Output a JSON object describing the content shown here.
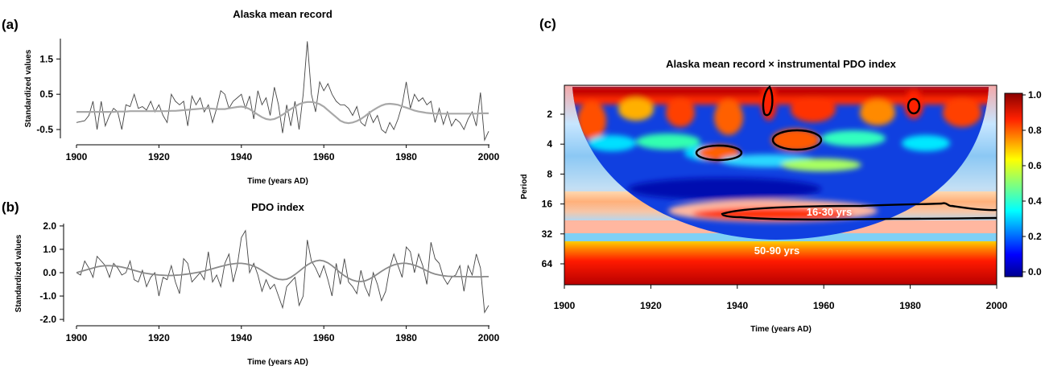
{
  "chart_data": [
    {
      "type": "line",
      "panel_label": "(a)",
      "title": "Alaska mean record",
      "xlabel": "Time  (years AD)",
      "ylabel": "Standardized values",
      "xlim": [
        1900,
        2000
      ],
      "ylim": [
        -0.75,
        2.1
      ],
      "x_ticks": [
        1900,
        1920,
        1940,
        1960,
        1980,
        2000
      ],
      "y_ticks": [
        -0.5,
        0.5,
        1.5
      ],
      "y_tick_labels": [
        "-0.5",
        "0.5",
        "1.5"
      ],
      "x": [
        1900,
        1902,
        1903,
        1904,
        1905,
        1906,
        1907,
        1908,
        1909,
        1910,
        1911,
        1912,
        1913,
        1914,
        1915,
        1916,
        1917,
        1918,
        1919,
        1920,
        1921,
        1922,
        1923,
        1924,
        1925,
        1926,
        1927,
        1928,
        1929,
        1930,
        1931,
        1932,
        1933,
        1934,
        1935,
        1936,
        1937,
        1938,
        1939,
        1940,
        1941,
        1942,
        1943,
        1944,
        1945,
        1946,
        1947,
        1948,
        1949,
        1950,
        1951,
        1952,
        1953,
        1954,
        1955,
        1956,
        1957,
        1958,
        1959,
        1960,
        1961,
        1962,
        1963,
        1964,
        1965,
        1966,
        1967,
        1968,
        1969,
        1970,
        1971,
        1972,
        1973,
        1974,
        1975,
        1976,
        1977,
        1978,
        1979,
        1980,
        1981,
        1982,
        1983,
        1984,
        1985,
        1986,
        1987,
        1988,
        1989,
        1990,
        1991,
        1992,
        1993,
        1994,
        1995,
        1996,
        1997,
        1998,
        1999,
        2000
      ],
      "series": [
        {
          "values": [
            -0.3,
            -0.25,
            -0.1,
            0.3,
            -0.5,
            0.3,
            -0.4,
            -0.1,
            0.1,
            0.0,
            -0.5,
            0.2,
            0.15,
            0.5,
            0.1,
            0.15,
            0.05,
            0.3,
            0.0,
            0.2,
            -0.1,
            -0.3,
            0.5,
            0.3,
            0.2,
            0.3,
            -0.4,
            0.45,
            0.2,
            0.4,
            0.0,
            0.2,
            -0.3,
            0.1,
            0.6,
            0.5,
            0.1,
            0.3,
            0.4,
            0.5,
            0.1,
            0.45,
            -0.2,
            0.6,
            0.2,
            0.4,
            -0.1,
            0.7,
            0.2,
            -0.6,
            0.2,
            -0.4,
            0.3,
            -0.5,
            0.5,
            2.0,
            0.5,
            0.0,
            0.85,
            0.6,
            0.8,
            0.5,
            0.3,
            0.2,
            0.2,
            0.1,
            -0.1,
            0.15,
            -0.3,
            -0.4,
            0.0,
            -0.3,
            -0.1,
            -0.5,
            -0.6,
            -0.3,
            -0.5,
            -0.2,
            0.2,
            0.85,
            0.1,
            0.5,
            0.3,
            0.4,
            0.2,
            0.3,
            -0.3,
            0.1,
            -0.35,
            0.0,
            -0.4,
            -0.2,
            -0.3,
            -0.5,
            -0.2,
            0.0,
            -0.4,
            0.55,
            -0.8,
            -0.55
          ]
        },
        {
          "values": [
            0.0,
            0.0,
            0.0,
            0.0,
            0.0,
            0.0,
            0.0,
            0.0,
            0.0,
            0.01,
            0.01,
            0.01,
            0.02,
            0.02,
            0.02,
            0.02,
            0.02,
            0.02,
            0.02,
            0.02,
            0.02,
            0.02,
            0.03,
            0.03,
            0.04,
            0.05,
            0.06,
            0.07,
            0.08,
            0.09,
            0.1,
            0.1,
            0.09,
            0.08,
            0.08,
            0.08,
            0.1,
            0.12,
            0.14,
            0.15,
            0.13,
            0.08,
            0.0,
            -0.08,
            -0.15,
            -0.2,
            -0.22,
            -0.2,
            -0.15,
            -0.08,
            0.0,
            0.08,
            0.15,
            0.22,
            0.26,
            0.28,
            0.28,
            0.26,
            0.22,
            0.15,
            0.05,
            -0.05,
            -0.15,
            -0.25,
            -0.3,
            -0.32,
            -0.3,
            -0.26,
            -0.2,
            -0.12,
            -0.03,
            0.05,
            0.12,
            0.18,
            0.22,
            0.23,
            0.22,
            0.2,
            0.16,
            0.12,
            0.08,
            0.04,
            0.01,
            -0.01,
            -0.03,
            -0.04,
            -0.05,
            -0.05,
            -0.05,
            -0.05,
            -0.05,
            -0.05,
            -0.05,
            -0.05,
            -0.05,
            -0.05,
            -0.05,
            -0.04,
            -0.04,
            -0.04
          ]
        }
      ]
    },
    {
      "type": "line",
      "panel_label": "(b)",
      "title": "PDO index",
      "xlabel": "Time  (years AD)",
      "ylabel": "Standardized values",
      "xlim": [
        1900,
        2000
      ],
      "ylim": [
        -2.1,
        2.1
      ],
      "x_ticks": [
        1900,
        1920,
        1940,
        1960,
        1980,
        2000
      ],
      "y_ticks": [
        -2.0,
        -1.0,
        0.0,
        1.0,
        2.0
      ],
      "y_tick_labels": [
        "-2.0",
        "-1.0",
        "0.0",
        "1.0",
        "2.0"
      ],
      "x": [
        1900,
        1901,
        1902,
        1903,
        1904,
        1905,
        1906,
        1907,
        1908,
        1909,
        1910,
        1911,
        1912,
        1913,
        1914,
        1915,
        1916,
        1917,
        1918,
        1919,
        1920,
        1921,
        1922,
        1923,
        1924,
        1925,
        1926,
        1927,
        1928,
        1929,
        1930,
        1931,
        1932,
        1933,
        1934,
        1935,
        1936,
        1937,
        1938,
        1939,
        1940,
        1941,
        1942,
        1943,
        1944,
        1945,
        1946,
        1947,
        1948,
        1949,
        1950,
        1951,
        1952,
        1953,
        1954,
        1955,
        1956,
        1957,
        1958,
        1959,
        1960,
        1961,
        1962,
        1963,
        1964,
        1965,
        1966,
        1967,
        1968,
        1969,
        1970,
        1971,
        1972,
        1973,
        1974,
        1975,
        1976,
        1977,
        1978,
        1979,
        1980,
        1981,
        1982,
        1983,
        1984,
        1985,
        1986,
        1987,
        1988,
        1989,
        1990,
        1991,
        1992,
        1993,
        1994,
        1995,
        1996,
        1997,
        1998,
        1999,
        2000
      ],
      "series": [
        {
          "values": [
            0.0,
            -0.1,
            0.5,
            0.2,
            -0.2,
            0.7,
            0.5,
            0.3,
            -0.2,
            0.4,
            0.2,
            -0.1,
            0.0,
            0.5,
            -0.3,
            -0.4,
            0.1,
            -0.6,
            -0.2,
            0.0,
            -1.0,
            -0.2,
            -0.3,
            0.3,
            -0.4,
            -0.9,
            0.6,
            0.4,
            -0.4,
            -0.2,
            0.0,
            -0.3,
            0.9,
            -0.4,
            -0.1,
            -0.6,
            0.4,
            0.8,
            -0.4,
            0.3,
            1.5,
            1.8,
            0.0,
            0.4,
            -0.1,
            -0.8,
            -0.3,
            -0.7,
            -0.5,
            -1.0,
            -1.5,
            -0.6,
            -0.4,
            -0.2,
            -1.4,
            -1.0,
            1.4,
            0.5,
            0.2,
            -0.2,
            0.3,
            -0.3,
            -1.0,
            0.4,
            -0.5,
            0.6,
            -0.4,
            -0.6,
            -0.9,
            0.1,
            -0.6,
            -1.0,
            0.0,
            -0.5,
            -1.2,
            -0.8,
            0.2,
            0.8,
            0.3,
            -0.2,
            1.1,
            0.9,
            0.0,
            0.8,
            0.3,
            -0.5,
            1.3,
            0.6,
            0.4,
            -0.2,
            -0.5,
            -0.2,
            -0.1,
            0.3,
            -0.8,
            0.3,
            -0.1,
            0.8,
            0.2,
            -1.7,
            -1.4
          ]
        },
        {
          "values": [
            0.0,
            0.05,
            0.1,
            0.15,
            0.2,
            0.25,
            0.28,
            0.3,
            0.3,
            0.29,
            0.27,
            0.24,
            0.2,
            0.15,
            0.1,
            0.05,
            0.0,
            -0.03,
            -0.06,
            -0.08,
            -0.1,
            -0.11,
            -0.12,
            -0.12,
            -0.11,
            -0.1,
            -0.08,
            -0.06,
            -0.03,
            0.0,
            0.03,
            0.07,
            0.12,
            0.17,
            0.22,
            0.27,
            0.31,
            0.35,
            0.38,
            0.4,
            0.4,
            0.38,
            0.34,
            0.28,
            0.2,
            0.1,
            -0.01,
            -0.12,
            -0.22,
            -0.28,
            -0.3,
            -0.28,
            -0.2,
            -0.08,
            0.06,
            0.2,
            0.33,
            0.43,
            0.5,
            0.53,
            0.5,
            0.42,
            0.3,
            0.15,
            0.0,
            -0.13,
            -0.24,
            -0.32,
            -0.37,
            -0.38,
            -0.35,
            -0.28,
            -0.18,
            -0.06,
            0.06,
            0.17,
            0.26,
            0.33,
            0.38,
            0.4,
            0.4,
            0.37,
            0.32,
            0.25,
            0.17,
            0.08,
            0.0,
            -0.06,
            -0.1,
            -0.13,
            -0.15,
            -0.16,
            -0.17,
            -0.17,
            -0.17,
            -0.17,
            -0.18,
            -0.18,
            -0.18,
            -0.17,
            -0.17
          ]
        }
      ]
    },
    {
      "type": "heatmap",
      "panel_label": "(c)",
      "title": "Alaska mean record × instrumental PDO index",
      "xlabel": "Time  (years AD)",
      "ylabel": "Period",
      "xlim": [
        1900,
        2000
      ],
      "x_ticks": [
        1900,
        1920,
        1940,
        1960,
        1980,
        2000
      ],
      "y_ticks": [
        2,
        4,
        8,
        16,
        32,
        64
      ],
      "y_scale": "log2",
      "colorbar_ticks": [
        0.0,
        0.2,
        0.4,
        0.6,
        0.8,
        1.0
      ],
      "colorbar_tick_labels": [
        "0.0",
        "0.2",
        "0.4",
        "0.6",
        "0.8",
        "1.0"
      ],
      "annotations": [
        "16-30 yrs",
        "50-90 yrs"
      ]
    }
  ]
}
